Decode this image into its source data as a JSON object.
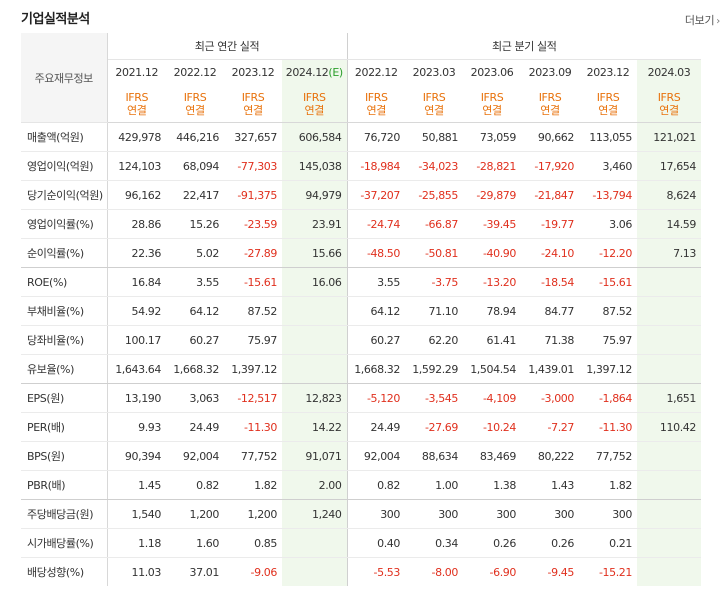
{
  "header": {
    "title": "기업실적분석",
    "more_label": "더보기",
    "more_icon": "chevron-right-icon"
  },
  "table": {
    "row_header_label": "주요재무정보",
    "annual_group": "최근 연간 실적",
    "quarterly_group": "최근 분기 실적",
    "periods": [
      "2021.12",
      "2022.12",
      "2023.12",
      "2024.12",
      "2022.12",
      "2023.03",
      "2023.06",
      "2023.09",
      "2023.12",
      "2024.03"
    ],
    "estimate_suffix": "(E)",
    "standard_line1": "IFRS",
    "standard_line2": "연결",
    "rows": [
      {
        "label": "매출액(억원)",
        "values": [
          "429,978",
          "446,216",
          "327,657",
          "606,584",
          "76,720",
          "50,881",
          "73,059",
          "90,662",
          "113,055",
          "121,021"
        ]
      },
      {
        "label": "영업이익(억원)",
        "values": [
          "124,103",
          "68,094",
          "-77,303",
          "145,038",
          "-18,984",
          "-34,023",
          "-28,821",
          "-17,920",
          "3,460",
          "17,654"
        ]
      },
      {
        "label": "당기순이익(억원)",
        "values": [
          "96,162",
          "22,417",
          "-91,375",
          "94,979",
          "-37,207",
          "-25,855",
          "-29,879",
          "-21,847",
          "-13,794",
          "8,624"
        ]
      },
      {
        "label": "영업이익률(%)",
        "values": [
          "28.86",
          "15.26",
          "-23.59",
          "23.91",
          "-24.74",
          "-66.87",
          "-39.45",
          "-19.77",
          "3.06",
          "14.59"
        ]
      },
      {
        "label": "순이익률(%)",
        "values": [
          "22.36",
          "5.02",
          "-27.89",
          "15.66",
          "-48.50",
          "-50.81",
          "-40.90",
          "-24.10",
          "-12.20",
          "7.13"
        ]
      },
      {
        "label": "ROE(%)",
        "values": [
          "16.84",
          "3.55",
          "-15.61",
          "16.06",
          "3.55",
          "-3.75",
          "-13.20",
          "-18.54",
          "-15.61",
          ""
        ]
      },
      {
        "label": "부채비율(%)",
        "values": [
          "54.92",
          "64.12",
          "87.52",
          "",
          "64.12",
          "71.10",
          "78.94",
          "84.77",
          "87.52",
          ""
        ]
      },
      {
        "label": "당좌비율(%)",
        "values": [
          "100.17",
          "60.27",
          "75.97",
          "",
          "60.27",
          "62.20",
          "61.41",
          "71.38",
          "75.97",
          ""
        ]
      },
      {
        "label": "유보율(%)",
        "values": [
          "1,643.64",
          "1,668.32",
          "1,397.12",
          "",
          "1,668.32",
          "1,592.29",
          "1,504.54",
          "1,439.01",
          "1,397.12",
          ""
        ]
      },
      {
        "label": "EPS(원)",
        "values": [
          "13,190",
          "3,063",
          "-12,517",
          "12,823",
          "-5,120",
          "-3,545",
          "-4,109",
          "-3,000",
          "-1,864",
          "1,651"
        ]
      },
      {
        "label": "PER(배)",
        "values": [
          "9.93",
          "24.49",
          "-11.30",
          "14.22",
          "24.49",
          "-27.69",
          "-10.24",
          "-7.27",
          "-11.30",
          "110.42"
        ]
      },
      {
        "label": "BPS(원)",
        "values": [
          "90,394",
          "92,004",
          "77,752",
          "91,071",
          "92,004",
          "88,634",
          "83,469",
          "80,222",
          "77,752",
          ""
        ]
      },
      {
        "label": "PBR(배)",
        "values": [
          "1.45",
          "0.82",
          "1.82",
          "2.00",
          "0.82",
          "1.00",
          "1.38",
          "1.43",
          "1.82",
          ""
        ]
      },
      {
        "label": "주당배당금(원)",
        "values": [
          "1,540",
          "1,200",
          "1,200",
          "1,240",
          "300",
          "300",
          "300",
          "300",
          "300",
          ""
        ]
      },
      {
        "label": "시가배당률(%)",
        "values": [
          "1.18",
          "1.60",
          "0.85",
          "",
          "0.40",
          "0.34",
          "0.26",
          "0.26",
          "0.21",
          ""
        ]
      },
      {
        "label": "배당성향(%)",
        "values": [
          "11.03",
          "37.01",
          "-9.06",
          "",
          "-5.53",
          "-8.00",
          "-6.90",
          "-9.45",
          "-15.21",
          ""
        ]
      }
    ]
  },
  "colors": {
    "negative": "#e0301e",
    "ifrs": "#e8720c",
    "estimate_bg": "#f0f8ec",
    "estimate_mark": "#2c9f2c"
  }
}
